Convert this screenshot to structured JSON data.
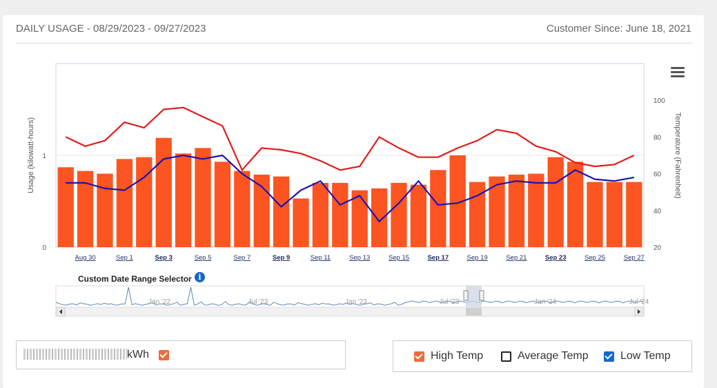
{
  "header": {
    "title": "DAILY USAGE - 08/29/2023 - 09/27/2023",
    "customer_since": "Customer Since: June 18, 2021"
  },
  "colors": {
    "bar": "#fc5522",
    "high_temp": "#e01b1b",
    "low_temp": "#1d12b0",
    "navigator_line": "#5b87b8",
    "navigator_window": "#ccd6e6"
  },
  "chart_data": {
    "type": "bar",
    "x": [
      "Aug 29",
      "Aug 30",
      "Aug 31",
      "Sep 1",
      "Sep 2",
      "Sep 3",
      "Sep 4",
      "Sep 5",
      "Sep 6",
      "Sep 7",
      "Sep 8",
      "Sep 9",
      "Sep 10",
      "Sep 11",
      "Sep 12",
      "Sep 13",
      "Sep 14",
      "Sep 15",
      "Sep 16",
      "Sep 17",
      "Sep 18",
      "Sep 19",
      "Sep 20",
      "Sep 21",
      "Sep 22",
      "Sep 23",
      "Sep 24",
      "Sep 25",
      "Sep 26",
      "Sep 27"
    ],
    "tick_labels": [
      "Aug 30",
      "Sep 1",
      "Sep 3",
      "Sep 5",
      "Sep 7",
      "Sep 9",
      "Sep 11",
      "Sep 13",
      "Sep 15",
      "Sep 17",
      "Sep 19",
      "Sep 21",
      "Sep 23",
      "Sep 25",
      "Sep 27"
    ],
    "bold_ticks": [
      "Sep 3",
      "Sep 9",
      "Sep 17",
      "Sep 23"
    ],
    "series": [
      {
        "axis": "left",
        "values": [
          0.87,
          0.83,
          0.8,
          0.96,
          0.98,
          1.19,
          1.02,
          1.08,
          0.93,
          0.83,
          0.79,
          0.77,
          0.53,
          0.7,
          0.7,
          0.62,
          0.64,
          0.7,
          0.68,
          0.84,
          1.0,
          0.71,
          0.77,
          0.79,
          0.8,
          0.98,
          0.93,
          0.71,
          0.71,
          0.71
        ]
      },
      {
        "axis": "right",
        "values": [
          80,
          75,
          78,
          88,
          85,
          95,
          96,
          91,
          86,
          62,
          74,
          73,
          71,
          67,
          62,
          64,
          80,
          74,
          69,
          69,
          74,
          78,
          84,
          82,
          75,
          72,
          66,
          64,
          65,
          70
        ]
      },
      {
        "axis": "right",
        "values": [
          55,
          55,
          52,
          51,
          58,
          68,
          70,
          68,
          70,
          60,
          53,
          42,
          51,
          56,
          43,
          48,
          34,
          44,
          56,
          43,
          44,
          48,
          54,
          56,
          55,
          55,
          62,
          57,
          56,
          58
        ]
      }
    ],
    "y_left": {
      "label": "Usage (kilowatt-hours)",
      "ticks": [
        0,
        1
      ],
      "range": [
        0,
        2
      ]
    },
    "y_right": {
      "label": "Temperature (Fahrenheit)",
      "ticks": [
        20,
        40,
        60,
        80,
        100
      ],
      "range": [
        20,
        120
      ]
    },
    "navigator": {
      "title": "Custom Date Range Selector",
      "labels": [
        "Jan '22",
        "Jul '23",
        "Jan '23",
        "Jul '23",
        "Jan '24",
        "Jul '24"
      ],
      "selected_range": [
        "Aug 29",
        "Sep 27"
      ]
    }
  },
  "legend": {
    "usage_suffix": "kWh",
    "high_temp": "High Temp",
    "average_temp": "Average Temp",
    "low_temp": "Low Temp"
  },
  "icons": {
    "menu": "hamburger-menu-icon",
    "info": "info-icon",
    "left": "scroll-left-icon",
    "right": "scroll-right-icon"
  },
  "info_glyph": "i"
}
